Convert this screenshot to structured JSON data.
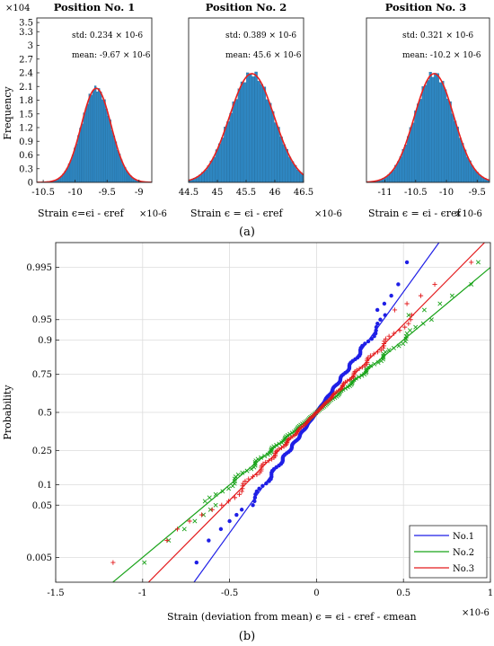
{
  "chart_data": [
    {
      "type": "bar",
      "title": "Position No. 1",
      "xlabel": "Strain ϵ=ϵi - ϵref",
      "x_exponent_label": "×10-6",
      "ylabel": "Frequency",
      "y_exponent_label": "×104",
      "xlim": [
        -10.6,
        -8.8
      ],
      "ylim": [
        0,
        3.6
      ],
      "xticks": [
        "-10.5",
        "-10",
        "-9.5",
        "-9"
      ],
      "yticks": [
        "0",
        "0.3",
        "0.6",
        "0.9",
        "1.2",
        "1.5",
        "1.8",
        "2.1",
        "2.4",
        "2.7",
        "3",
        "3.3",
        "3.5"
      ],
      "stats": [
        "std: 0.234 × 10-6",
        "mean: -9.67 × 10-6"
      ],
      "mean": -9.67,
      "std": 0.234,
      "peak": 2.06,
      "bar_color": "#2e86c1",
      "fit_color": "#e8201e"
    },
    {
      "type": "bar",
      "title": "Position No. 2",
      "xlabel": "Strain ϵ = ϵi - ϵref",
      "x_exponent_label": "×10-6",
      "xlim": [
        44.5,
        46.5
      ],
      "ylim": [
        0,
        3.6
      ],
      "xticks": [
        "44.5",
        "45",
        "45.5",
        "46",
        "46.5"
      ],
      "stats": [
        "std: 0.389 × 10-6",
        "mean: 45.6 × 10-6"
      ],
      "mean": 45.6,
      "std": 0.389,
      "peak": 2.38,
      "bar_color": "#2e86c1",
      "fit_color": "#e8201e"
    },
    {
      "type": "bar",
      "title": "Position No. 3",
      "xlabel": "Strain ϵ = ϵi - ϵref",
      "x_exponent_label": "×10-6",
      "xlim": [
        -11.3,
        -9.3
      ],
      "ylim": [
        0,
        3.6
      ],
      "xticks": [
        "-11",
        "-10.5",
        "-10",
        "-9.5"
      ],
      "stats": [
        "std: 0.321 × 10-6",
        "mean: -10.2 × 10-6"
      ],
      "mean": -10.2,
      "std": 0.321,
      "peak": 2.38,
      "bar_color": "#2e86c1",
      "fit_color": "#e8201e"
    },
    {
      "type": "scatter",
      "subtype": "normal-probability",
      "xlabel": "Strain (deviation from mean) ϵ = ϵi - ϵref - ϵmean",
      "x_exponent_label": "×10-6",
      "ylabel": "Probability",
      "xlim": [
        -1.5,
        1.0
      ],
      "xticks": [
        "-1.5",
        "-1",
        "-0.5",
        "0",
        "0.5",
        "1"
      ],
      "yticks": [
        "0.005",
        "0.05",
        "0.1",
        "0.25",
        "0.5",
        "0.75",
        "0.9",
        "0.95",
        "0.995"
      ],
      "grid": true,
      "legend_position": "bottom-right",
      "series": [
        {
          "name": "No.1",
          "color": "#1f1fe6",
          "marker": "dot",
          "std": 0.234,
          "tail_low": [
            -0.69,
            -0.62,
            -0.55,
            -0.5,
            -0.46,
            -0.43
          ],
          "tail_high": [
            0.35,
            0.39,
            0.43,
            0.47,
            0.52
          ]
        },
        {
          "name": "No.2",
          "color": "#19a319",
          "marker": "x",
          "std": 0.389,
          "tail_low": [
            -0.99,
            -0.85,
            -0.76,
            -0.7,
            -0.65,
            -0.61,
            -0.58
          ],
          "tail_high": [
            0.53,
            0.62,
            0.71,
            0.78,
            0.89,
            0.93
          ]
        },
        {
          "name": "No.3",
          "color": "#e31a1c",
          "marker": "+",
          "std": 0.321,
          "tail_low": [
            -1.17,
            -0.86,
            -0.8,
            -0.73,
            -0.66,
            -0.6
          ],
          "tail_high": [
            0.45,
            0.52,
            0.6,
            0.68,
            0.89
          ]
        }
      ]
    }
  ],
  "captions": {
    "a": "(a)",
    "b": "(b)"
  }
}
